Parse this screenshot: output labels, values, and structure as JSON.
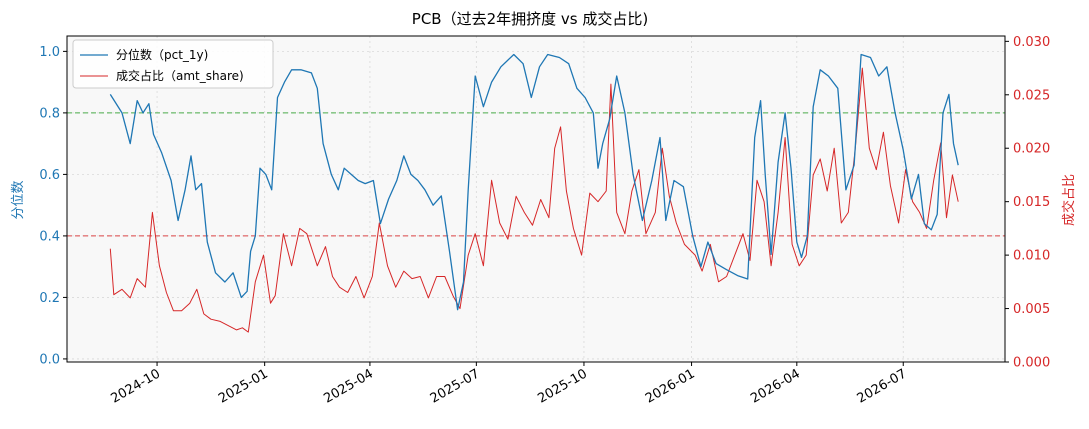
{
  "chart_data": {
    "type": "line",
    "title": "PCB（过去2年拥挤度 vs 成交占比)",
    "x_tick_labels": [
      "2024-10",
      "2025-01",
      "2025-04",
      "2025-07",
      "2025-10",
      "2026-01",
      "2026-04",
      "2026-07"
    ],
    "x_ticks": [
      "2024-10-01",
      "2025-01-01",
      "2025-04-01",
      "2025-07-01",
      "2025-10-01",
      "2026-01-01",
      "2026-04-01",
      "2026-07-01"
    ],
    "xlim": [
      "2024-07-16",
      "2026-09-26"
    ],
    "left_axis": {
      "label": "分位数",
      "ylim": [
        -0.01,
        1.05
      ],
      "ticks": [
        "0.0",
        "0.2",
        "0.4",
        "0.6",
        "0.8",
        "1.0"
      ],
      "color": "#1f77b4"
    },
    "right_axis": {
      "label": "成交占比",
      "ylim": [
        0.0,
        0.0305
      ],
      "ticks": [
        "0.000",
        "0.005",
        "0.010",
        "0.015",
        "0.020",
        "0.025",
        "0.030"
      ],
      "color": "#d62728"
    },
    "reference_lines": [
      {
        "axis": "left",
        "value": 0.8,
        "color": "#2ca02c",
        "style": "dashed"
      },
      {
        "axis": "left",
        "value": 0.4,
        "color": "#d62728",
        "style": "dashed"
      }
    ],
    "grid": true,
    "legend_position": "upper-left",
    "series": [
      {
        "name": "分位数（pct_1y)",
        "axis": "left",
        "color": "#1f77b4",
        "points": [
          [
            "2024-08-22",
            0.86
          ],
          [
            "2024-09-01",
            0.8
          ],
          [
            "2024-09-08",
            0.7
          ],
          [
            "2024-09-14",
            0.84
          ],
          [
            "2024-09-19",
            0.8
          ],
          [
            "2024-09-24",
            0.83
          ],
          [
            "2024-09-28",
            0.73
          ],
          [
            "2024-10-05",
            0.67
          ],
          [
            "2024-10-13",
            0.58
          ],
          [
            "2024-10-19",
            0.45
          ],
          [
            "2024-10-25",
            0.55
          ],
          [
            "2024-10-30",
            0.66
          ],
          [
            "2024-11-03",
            0.55
          ],
          [
            "2024-11-08",
            0.57
          ],
          [
            "2024-11-13",
            0.38
          ],
          [
            "2024-11-20",
            0.28
          ],
          [
            "2024-11-28",
            0.25
          ],
          [
            "2024-12-05",
            0.28
          ],
          [
            "2024-12-12",
            0.2
          ],
          [
            "2024-12-17",
            0.22
          ],
          [
            "2024-12-20",
            0.35
          ],
          [
            "2024-12-24",
            0.4
          ],
          [
            "2024-12-28",
            0.62
          ],
          [
            "2025-01-02",
            0.6
          ],
          [
            "2025-01-07",
            0.55
          ],
          [
            "2025-01-12",
            0.85
          ],
          [
            "2025-01-18",
            0.9
          ],
          [
            "2025-01-24",
            0.94
          ],
          [
            "2025-02-01",
            0.94
          ],
          [
            "2025-02-10",
            0.93
          ],
          [
            "2025-02-15",
            0.88
          ],
          [
            "2025-02-20",
            0.7
          ],
          [
            "2025-02-27",
            0.6
          ],
          [
            "2025-03-05",
            0.55
          ],
          [
            "2025-03-10",
            0.62
          ],
          [
            "2025-03-16",
            0.6
          ],
          [
            "2025-03-22",
            0.58
          ],
          [
            "2025-03-28",
            0.57
          ],
          [
            "2025-04-04",
            0.58
          ],
          [
            "2025-04-10",
            0.44
          ],
          [
            "2025-04-17",
            0.52
          ],
          [
            "2025-04-24",
            0.58
          ],
          [
            "2025-04-30",
            0.66
          ],
          [
            "2025-05-06",
            0.6
          ],
          [
            "2025-05-12",
            0.58
          ],
          [
            "2025-05-18",
            0.55
          ],
          [
            "2025-05-25",
            0.5
          ],
          [
            "2025-06-01",
            0.53
          ],
          [
            "2025-06-08",
            0.35
          ],
          [
            "2025-06-15",
            0.16
          ],
          [
            "2025-06-20",
            0.25
          ],
          [
            "2025-06-24",
            0.55
          ],
          [
            "2025-06-30",
            0.92
          ],
          [
            "2025-07-07",
            0.82
          ],
          [
            "2025-07-14",
            0.9
          ],
          [
            "2025-07-22",
            0.95
          ],
          [
            "2025-08-02",
            0.99
          ],
          [
            "2025-08-10",
            0.96
          ],
          [
            "2025-08-17",
            0.85
          ],
          [
            "2025-08-24",
            0.95
          ],
          [
            "2025-08-31",
            0.99
          ],
          [
            "2025-09-10",
            0.98
          ],
          [
            "2025-09-18",
            0.96
          ],
          [
            "2025-09-25",
            0.88
          ],
          [
            "2025-10-02",
            0.85
          ],
          [
            "2025-10-09",
            0.8
          ],
          [
            "2025-10-13",
            0.62
          ],
          [
            "2025-10-17",
            0.7
          ],
          [
            "2025-10-23",
            0.78
          ],
          [
            "2025-10-29",
            0.92
          ],
          [
            "2025-11-05",
            0.8
          ],
          [
            "2025-11-12",
            0.6
          ],
          [
            "2025-11-20",
            0.45
          ],
          [
            "2025-11-28",
            0.58
          ],
          [
            "2025-12-05",
            0.72
          ],
          [
            "2025-12-10",
            0.45
          ],
          [
            "2025-12-17",
            0.58
          ],
          [
            "2025-12-25",
            0.56
          ],
          [
            "2026-01-02",
            0.4
          ],
          [
            "2026-01-09",
            0.3
          ],
          [
            "2026-01-15",
            0.38
          ],
          [
            "2026-01-22",
            0.31
          ],
          [
            "2026-01-31",
            0.29
          ],
          [
            "2026-02-10",
            0.27
          ],
          [
            "2026-02-18",
            0.26
          ],
          [
            "2026-02-24",
            0.72
          ],
          [
            "2026-03-01",
            0.84
          ],
          [
            "2026-03-05",
            0.6
          ],
          [
            "2026-03-10",
            0.34
          ],
          [
            "2026-03-16",
            0.64
          ],
          [
            "2026-03-22",
            0.8
          ],
          [
            "2026-03-27",
            0.62
          ],
          [
            "2026-04-01",
            0.38
          ],
          [
            "2026-04-05",
            0.33
          ],
          [
            "2026-04-10",
            0.4
          ],
          [
            "2026-04-15",
            0.82
          ],
          [
            "2026-04-21",
            0.94
          ],
          [
            "2026-04-28",
            0.92
          ],
          [
            "2026-05-06",
            0.88
          ],
          [
            "2026-05-13",
            0.55
          ],
          [
            "2026-05-20",
            0.63
          ],
          [
            "2026-05-26",
            0.99
          ],
          [
            "2026-06-03",
            0.98
          ],
          [
            "2026-06-10",
            0.92
          ],
          [
            "2026-06-17",
            0.95
          ],
          [
            "2026-06-24",
            0.8
          ],
          [
            "2026-07-01",
            0.68
          ],
          [
            "2026-07-08",
            0.52
          ],
          [
            "2026-07-14",
            0.6
          ],
          [
            "2026-07-19",
            0.44
          ],
          [
            "2026-07-25",
            0.42
          ],
          [
            "2026-07-30",
            0.47
          ],
          [
            "2026-08-04",
            0.8
          ],
          [
            "2026-08-09",
            0.86
          ],
          [
            "2026-08-13",
            0.7
          ],
          [
            "2026-08-17",
            0.63
          ]
        ]
      },
      {
        "name": "成交占比（amt_share)",
        "axis": "right",
        "color": "#d62728",
        "points": [
          [
            "2024-08-22",
            0.0106
          ],
          [
            "2024-08-25",
            0.0063
          ],
          [
            "2024-09-01",
            0.0068
          ],
          [
            "2024-09-08",
            0.006
          ],
          [
            "2024-09-14",
            0.0078
          ],
          [
            "2024-09-21",
            0.007
          ],
          [
            "2024-09-27",
            0.014
          ],
          [
            "2024-10-03",
            0.009
          ],
          [
            "2024-10-09",
            0.0065
          ],
          [
            "2024-10-15",
            0.0048
          ],
          [
            "2024-10-22",
            0.0048
          ],
          [
            "2024-10-29",
            0.0055
          ],
          [
            "2024-11-04",
            0.0068
          ],
          [
            "2024-11-10",
            0.0045
          ],
          [
            "2024-11-16",
            0.004
          ],
          [
            "2024-11-24",
            0.0038
          ],
          [
            "2024-12-01",
            0.0034
          ],
          [
            "2024-12-08",
            0.003
          ],
          [
            "2024-12-13",
            0.0032
          ],
          [
            "2024-12-18",
            0.0028
          ],
          [
            "2024-12-24",
            0.0075
          ],
          [
            "2024-12-31",
            0.01
          ],
          [
            "2025-01-06",
            0.0055
          ],
          [
            "2025-01-10",
            0.0062
          ],
          [
            "2025-01-17",
            0.012
          ],
          [
            "2025-01-24",
            0.009
          ],
          [
            "2025-01-31",
            0.0125
          ],
          [
            "2025-02-06",
            0.012
          ],
          [
            "2025-02-15",
            0.009
          ],
          [
            "2025-02-22",
            0.0108
          ],
          [
            "2025-02-28",
            0.008
          ],
          [
            "2025-03-06",
            0.007
          ],
          [
            "2025-03-13",
            0.0065
          ],
          [
            "2025-03-20",
            0.008
          ],
          [
            "2025-03-27",
            0.006
          ],
          [
            "2025-04-03",
            0.008
          ],
          [
            "2025-04-09",
            0.013
          ],
          [
            "2025-04-16",
            0.009
          ],
          [
            "2025-04-23",
            0.007
          ],
          [
            "2025-04-30",
            0.0085
          ],
          [
            "2025-05-07",
            0.0078
          ],
          [
            "2025-05-14",
            0.008
          ],
          [
            "2025-05-21",
            0.006
          ],
          [
            "2025-05-28",
            0.008
          ],
          [
            "2025-06-04",
            0.008
          ],
          [
            "2025-06-11",
            0.0062
          ],
          [
            "2025-06-17",
            0.005
          ],
          [
            "2025-06-24",
            0.01
          ],
          [
            "2025-06-30",
            0.012
          ],
          [
            "2025-07-07",
            0.009
          ],
          [
            "2025-07-14",
            0.017
          ],
          [
            "2025-07-21",
            0.013
          ],
          [
            "2025-07-28",
            0.0115
          ],
          [
            "2025-08-04",
            0.0155
          ],
          [
            "2025-08-11",
            0.014
          ],
          [
            "2025-08-18",
            0.0128
          ],
          [
            "2025-08-25",
            0.0152
          ],
          [
            "2025-09-01",
            0.0135
          ],
          [
            "2025-09-06",
            0.02
          ],
          [
            "2025-09-11",
            0.022
          ],
          [
            "2025-09-16",
            0.016
          ],
          [
            "2025-09-22",
            0.0125
          ],
          [
            "2025-09-29",
            0.01
          ],
          [
            "2025-10-06",
            0.0158
          ],
          [
            "2025-10-13",
            0.015
          ],
          [
            "2025-10-20",
            0.016
          ],
          [
            "2025-10-24",
            0.026
          ],
          [
            "2025-10-29",
            0.014
          ],
          [
            "2025-11-05",
            0.012
          ],
          [
            "2025-11-11",
            0.016
          ],
          [
            "2025-11-17",
            0.018
          ],
          [
            "2025-11-23",
            0.012
          ],
          [
            "2025-12-01",
            0.014
          ],
          [
            "2025-12-07",
            0.02
          ],
          [
            "2025-12-13",
            0.0155
          ],
          [
            "2025-12-19",
            0.013
          ],
          [
            "2025-12-26",
            0.011
          ],
          [
            "2026-01-04",
            0.01
          ],
          [
            "2026-01-10",
            0.0085
          ],
          [
            "2026-01-17",
            0.011
          ],
          [
            "2026-01-24",
            0.0075
          ],
          [
            "2026-01-31",
            0.008
          ],
          [
            "2026-02-07",
            0.01
          ],
          [
            "2026-02-14",
            0.012
          ],
          [
            "2026-02-20",
            0.0095
          ],
          [
            "2026-02-26",
            0.017
          ],
          [
            "2026-03-04",
            0.015
          ],
          [
            "2026-03-10",
            0.009
          ],
          [
            "2026-03-16",
            0.014
          ],
          [
            "2026-03-22",
            0.021
          ],
          [
            "2026-03-28",
            0.011
          ],
          [
            "2026-04-03",
            0.009
          ],
          [
            "2026-04-09",
            0.01
          ],
          [
            "2026-04-15",
            0.0175
          ],
          [
            "2026-04-21",
            0.019
          ],
          [
            "2026-04-27",
            0.016
          ],
          [
            "2026-05-03",
            0.02
          ],
          [
            "2026-05-09",
            0.013
          ],
          [
            "2026-05-15",
            0.014
          ],
          [
            "2026-05-21",
            0.02
          ],
          [
            "2026-05-27",
            0.0275
          ],
          [
            "2026-06-02",
            0.02
          ],
          [
            "2026-06-08",
            0.018
          ],
          [
            "2026-06-14",
            0.0215
          ],
          [
            "2026-06-20",
            0.0165
          ],
          [
            "2026-06-27",
            0.013
          ],
          [
            "2026-07-03",
            0.018
          ],
          [
            "2026-07-09",
            0.015
          ],
          [
            "2026-07-15",
            0.014
          ],
          [
            "2026-07-21",
            0.0125
          ],
          [
            "2026-07-27",
            0.017
          ],
          [
            "2026-08-02",
            0.0205
          ],
          [
            "2026-08-07",
            0.0135
          ],
          [
            "2026-08-12",
            0.0175
          ],
          [
            "2026-08-17",
            0.015
          ]
        ]
      }
    ]
  }
}
